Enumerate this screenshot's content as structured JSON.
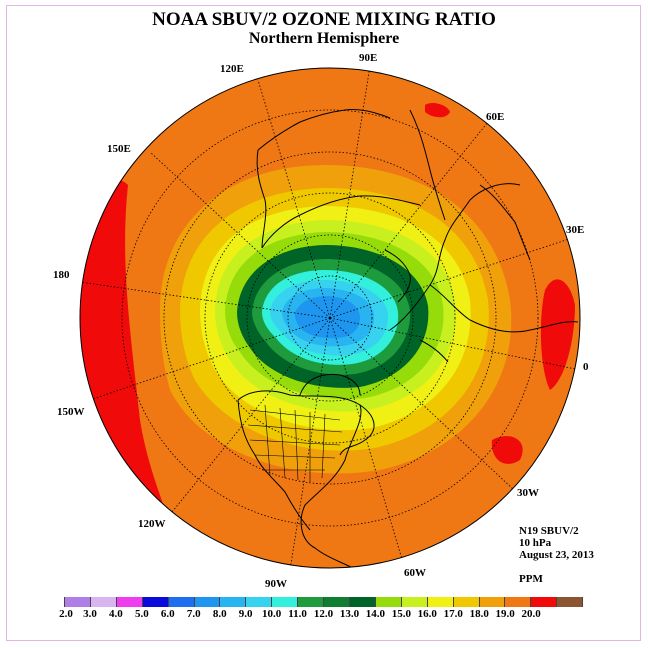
{
  "title": "NOAA SBUV/2 OZONE MIXING RATIO",
  "subtitle": "Northern Hemisphere",
  "longitude_labels": {
    "lon_120e": "120E",
    "lon_90e": "90E",
    "lon_60e": "60E",
    "lon_150e": "150E",
    "lon_30e": "30E",
    "lon_180": "180",
    "lon_0": "0",
    "lon_150w": "150W",
    "lon_30w": "30W",
    "lon_120w": "120W",
    "lon_60w": "60W",
    "lon_90w": "90W"
  },
  "info": {
    "instrument": "N19 SBUV/2",
    "level": "10 hPa",
    "date": "August 23, 2013"
  },
  "units": "PPM",
  "colorbar": {
    "labels": [
      "2.0",
      "3.0",
      "4.0",
      "5.0",
      "6.0",
      "7.0",
      "8.0",
      "9.0",
      "10.0",
      "11.0",
      "12.0",
      "13.0",
      "14.0",
      "15.0",
      "16.0",
      "17.0",
      "18.0",
      "19.0",
      "20.0"
    ],
    "colors": [
      "#b07fe6",
      "#d8b4f0",
      "#ee3cee",
      "#0a0adc",
      "#1e6ef0",
      "#1e96f0",
      "#28b4f0",
      "#37d2f0",
      "#32f0dc",
      "#1e9b3c",
      "#0f7d32",
      "#006428",
      "#96dc0a",
      "#c8f01e",
      "#f0f014",
      "#f0c800",
      "#f0a00a",
      "#f07814",
      "#f00a0a",
      "#8c5532"
    ]
  }
}
